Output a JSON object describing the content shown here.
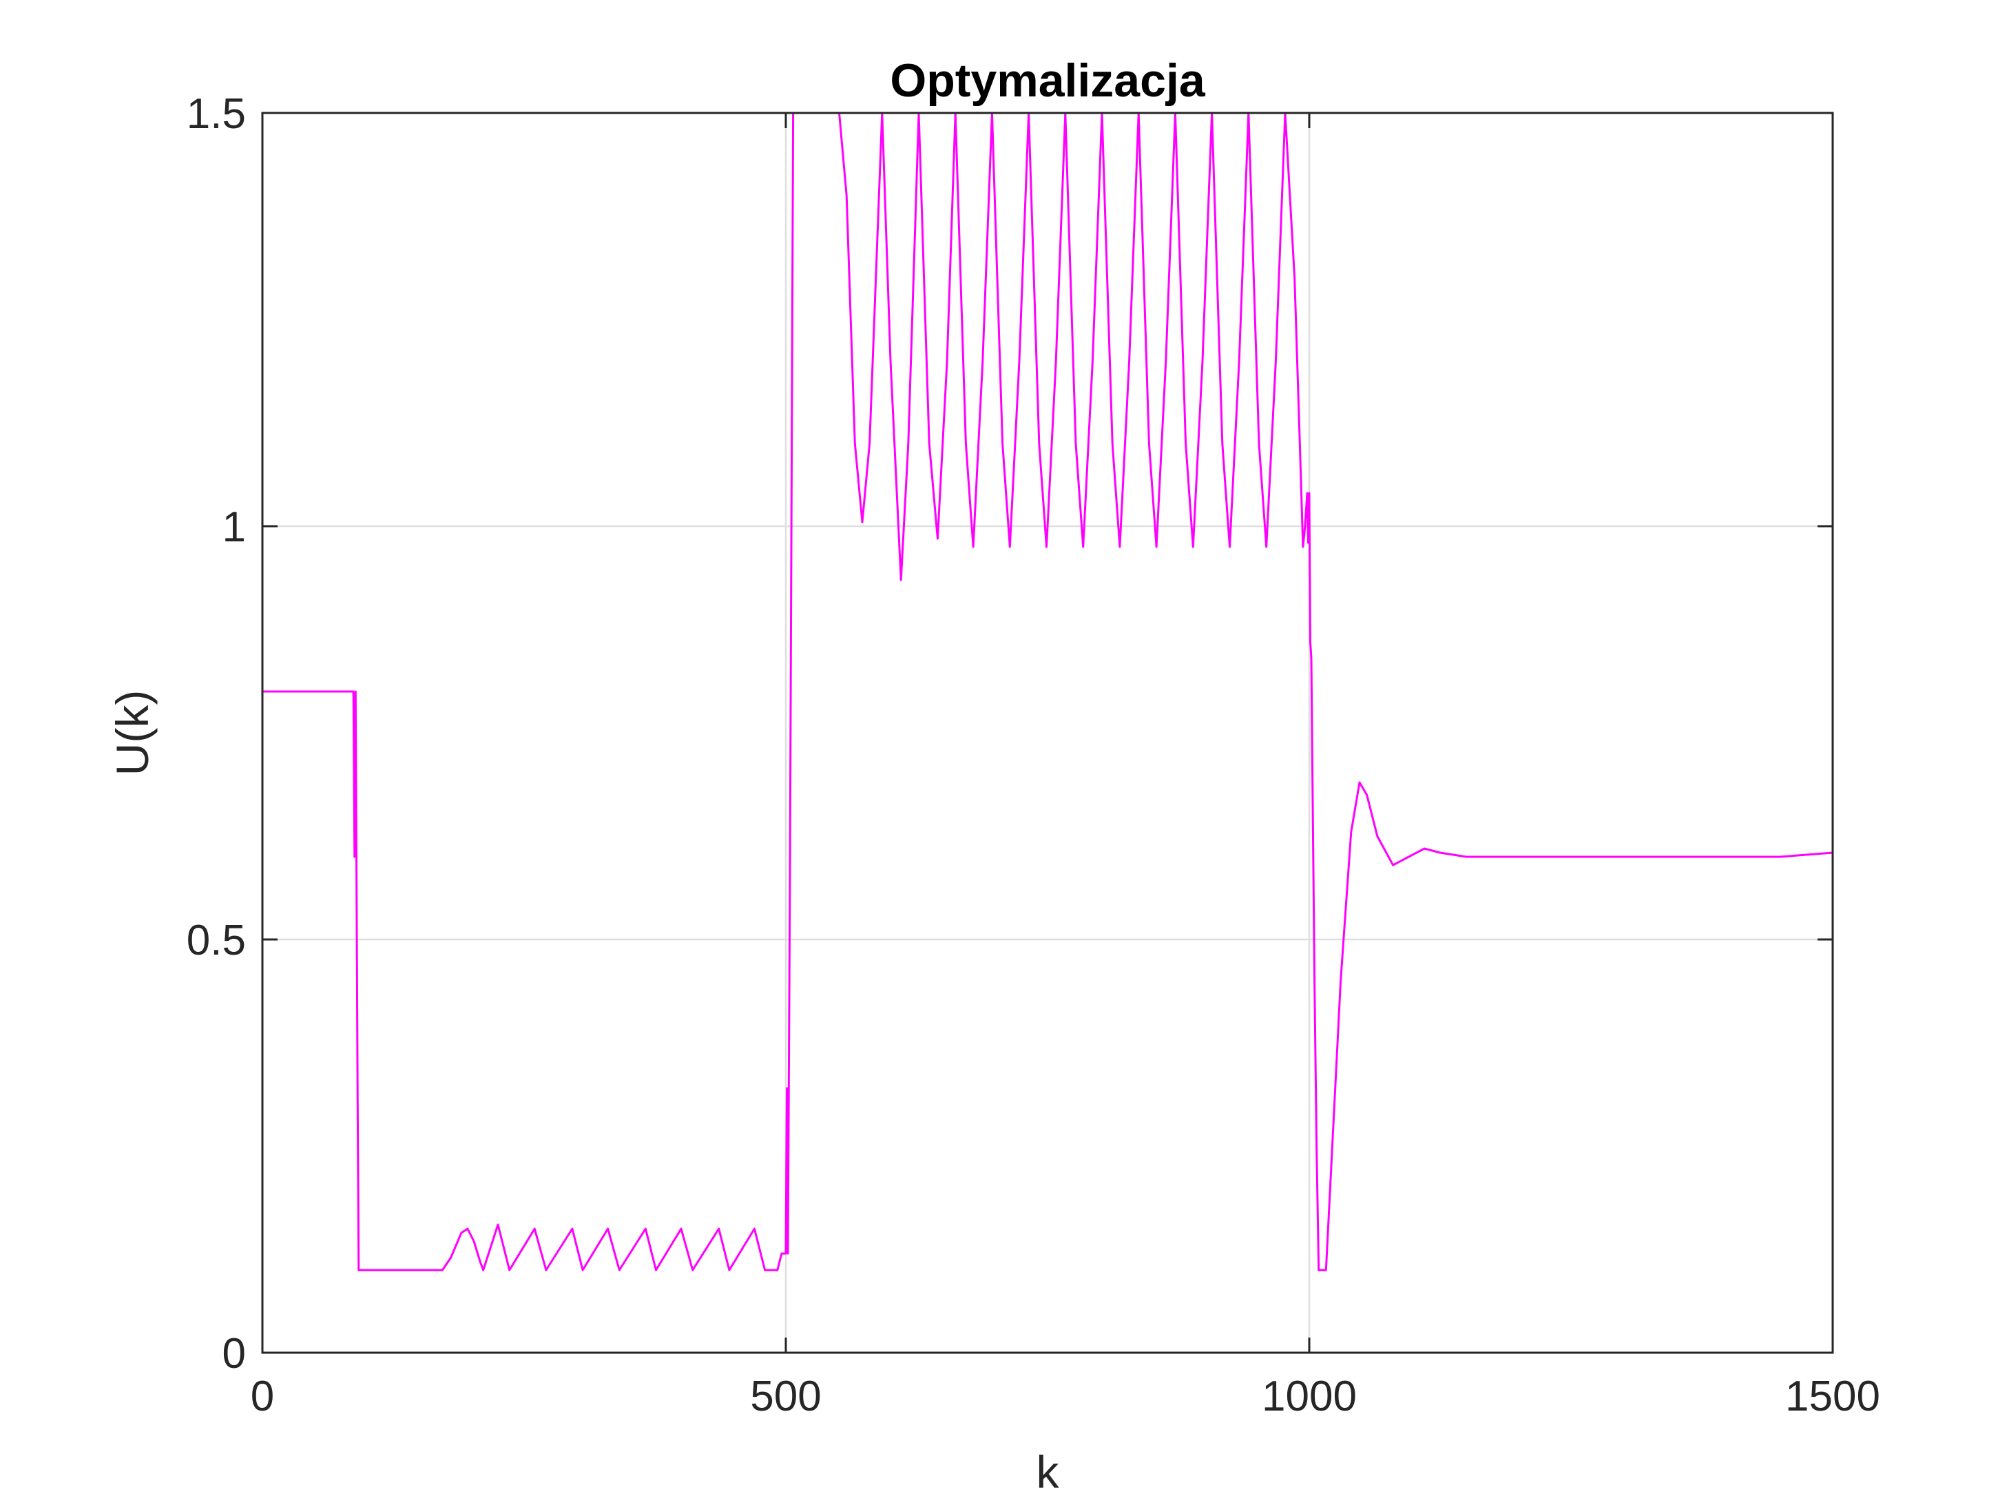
{
  "chart_data": {
    "type": "line",
    "title": "Optymalizacja",
    "xlabel": "k",
    "ylabel": "U(k)",
    "xlim": [
      0,
      1500
    ],
    "ylim": [
      0,
      1.5
    ],
    "x_ticks": [
      0,
      500,
      1000,
      1500
    ],
    "x_tick_labels": [
      "0",
      "500",
      "1000",
      "1500"
    ],
    "y_ticks": [
      0,
      0.5,
      1,
      1.5
    ],
    "y_tick_labels": [
      "0",
      "0.5",
      "1",
      "1.5"
    ],
    "grid": true,
    "legend": "none",
    "series": [
      {
        "color": "#ff00ff",
        "points": [
          [
            0,
            0.8
          ],
          [
            87,
            0.8
          ],
          [
            88,
            0.6
          ],
          [
            89,
            0.8
          ],
          [
            91,
            0.3
          ],
          [
            92,
            0.1
          ],
          [
            172,
            0.1
          ],
          [
            180,
            0.115
          ],
          [
            190,
            0.145
          ],
          [
            196,
            0.15
          ],
          [
            202,
            0.135
          ],
          [
            208,
            0.11
          ],
          [
            211,
            0.1
          ],
          [
            225,
            0.155
          ],
          [
            236,
            0.1
          ],
          [
            260,
            0.15
          ],
          [
            271,
            0.1
          ],
          [
            296,
            0.15
          ],
          [
            306,
            0.1
          ],
          [
            330,
            0.15
          ],
          [
            341,
            0.1
          ],
          [
            366,
            0.15
          ],
          [
            376,
            0.1
          ],
          [
            400,
            0.15
          ],
          [
            411,
            0.1
          ],
          [
            436,
            0.15
          ],
          [
            446,
            0.1
          ],
          [
            470,
            0.15
          ],
          [
            480,
            0.1
          ],
          [
            492,
            0.1
          ],
          [
            496,
            0.12
          ],
          [
            500,
            0.12
          ],
          [
            501,
            0.32
          ],
          [
            502,
            0.12
          ],
          [
            504,
            0.6
          ],
          [
            507,
            1.5
          ],
          [
            551,
            1.5
          ],
          [
            558,
            1.4
          ],
          [
            566,
            1.1
          ],
          [
            573,
            1.005
          ],
          [
            580,
            1.1
          ],
          [
            592,
            1.5
          ],
          [
            600,
            1.2
          ],
          [
            610,
            0.935
          ],
          [
            617,
            1.1
          ],
          [
            627,
            1.5
          ],
          [
            637,
            1.1
          ],
          [
            645,
            0.985
          ],
          [
            654,
            1.2
          ],
          [
            662,
            1.5
          ],
          [
            672,
            1.1
          ],
          [
            679,
            0.975
          ],
          [
            688,
            1.2
          ],
          [
            697,
            1.5
          ],
          [
            707,
            1.1
          ],
          [
            714,
            0.975
          ],
          [
            723,
            1.2
          ],
          [
            732,
            1.5
          ],
          [
            742,
            1.1
          ],
          [
            749,
            0.975
          ],
          [
            758,
            1.2
          ],
          [
            767,
            1.5
          ],
          [
            777,
            1.1
          ],
          [
            784,
            0.975
          ],
          [
            793,
            1.2
          ],
          [
            802,
            1.5
          ],
          [
            812,
            1.1
          ],
          [
            819,
            0.975
          ],
          [
            828,
            1.2
          ],
          [
            837,
            1.5
          ],
          [
            847,
            1.1
          ],
          [
            854,
            0.975
          ],
          [
            863,
            1.2
          ],
          [
            872,
            1.5
          ],
          [
            882,
            1.1
          ],
          [
            889,
            0.975
          ],
          [
            898,
            1.2
          ],
          [
            907,
            1.5
          ],
          [
            917,
            1.1
          ],
          [
            924,
            0.975
          ],
          [
            933,
            1.2
          ],
          [
            942,
            1.5
          ],
          [
            952,
            1.1
          ],
          [
            959,
            0.975
          ],
          [
            968,
            1.2
          ],
          [
            977,
            1.5
          ],
          [
            986,
            1.3
          ],
          [
            991,
            1.1
          ],
          [
            994,
            0.975
          ],
          [
            996,
            1.0
          ],
          [
            998,
            1.04
          ],
          [
            999,
            0.98
          ],
          [
            1000,
            1.04
          ],
          [
            1001,
            0.86
          ],
          [
            1002,
            0.84
          ],
          [
            1003,
            0.7
          ],
          [
            1005,
            0.45
          ],
          [
            1007,
            0.25
          ],
          [
            1009,
            0.1
          ],
          [
            1016,
            0.1
          ],
          [
            1020,
            0.2
          ],
          [
            1030,
            0.45
          ],
          [
            1040,
            0.63
          ],
          [
            1048,
            0.69
          ],
          [
            1055,
            0.675
          ],
          [
            1065,
            0.625
          ],
          [
            1080,
            0.59
          ],
          [
            1095,
            0.6
          ],
          [
            1110,
            0.61
          ],
          [
            1125,
            0.605
          ],
          [
            1150,
            0.6
          ],
          [
            1200,
            0.6
          ],
          [
            1300,
            0.6
          ],
          [
            1400,
            0.6
          ],
          [
            1450,
            0.6
          ],
          [
            1500,
            0.605
          ]
        ]
      }
    ]
  }
}
